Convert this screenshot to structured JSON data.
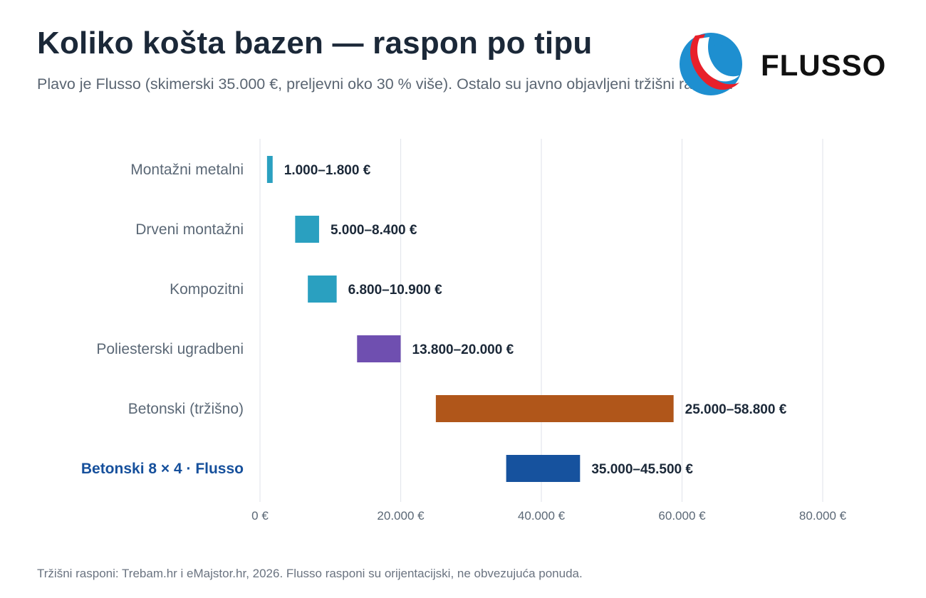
{
  "header": {
    "title": "Koliko košta bazen — raspon po tipu",
    "subtitle": "Plavo je Flusso (skimerski 35.000 €, preljevni oko 30 % više). Ostalo su javno objavljeni tržišni rasponi."
  },
  "logo": {
    "text": "FLUSSO",
    "colors": {
      "blue": "#1e8fd0",
      "red": "#e8202a",
      "ink": "#111111"
    }
  },
  "footer": {
    "note": "Tržišni rasponi: Trebam.hr i eMajstor.hr, 2026. Flusso rasponi su orijentacijski, ne obvezujuća ponuda."
  },
  "chart_data": {
    "type": "bar",
    "orientation": "horizontal",
    "subtype": "range",
    "xlim": [
      0,
      80000
    ],
    "x_ticks": [
      0,
      20000,
      40000,
      60000,
      80000
    ],
    "x_tick_labels": [
      "0 €",
      "20.000 €",
      "40.000 €",
      "60.000 €",
      "80.000 €"
    ],
    "grid": true,
    "legend": "none",
    "categories": [
      {
        "name": "Montažni metalni",
        "min": 1000,
        "max": 1800,
        "label": "1.000–1.800 €",
        "color": "#2aa0c0",
        "highlight": false
      },
      {
        "name": "Drveni montažni",
        "min": 5000,
        "max": 8400,
        "label": "5.000–8.400 €",
        "color": "#2aa0c0",
        "highlight": false
      },
      {
        "name": "Kompozitni",
        "min": 6800,
        "max": 10900,
        "label": "6.800–10.900 €",
        "color": "#2aa0c0",
        "highlight": false
      },
      {
        "name": "Poliesterski ugradbeni",
        "min": 13800,
        "max": 20000,
        "label": "13.800–20.000 €",
        "color": "#6f4fb0",
        "highlight": false
      },
      {
        "name": "Betonski (tržišno)",
        "min": 25000,
        "max": 58800,
        "label": "25.000–58.800 €",
        "color": "#b0561a",
        "highlight": false
      },
      {
        "name": "Betonski 8 × 4 · Flusso",
        "min": 35000,
        "max": 45500,
        "label": "35.000–45.500 €",
        "color": "#16529e",
        "highlight": true
      }
    ]
  }
}
